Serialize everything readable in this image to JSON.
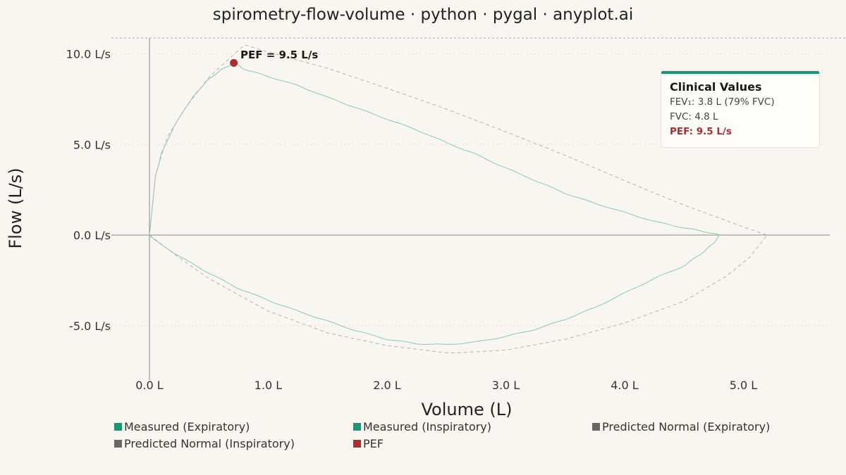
{
  "chart_data": {
    "type": "line",
    "title": "spirometry-flow-volume · python · pygal · anyplot.ai",
    "xlabel": "Volume (L)",
    "ylabel": "Flow (L/s)",
    "xlim": [
      -0.3,
      5.75
    ],
    "ylim": [
      -7.8,
      10.9
    ],
    "x_ticks": [
      0,
      1,
      2,
      3,
      4,
      5
    ],
    "x_tick_labels": [
      "0.0 L",
      "1.0 L",
      "2.0 L",
      "3.0 L",
      "4.0 L",
      "5.0 L"
    ],
    "y_ticks": [
      10,
      5,
      0,
      -5
    ],
    "y_tick_labels": [
      "10.0 L/s",
      "5.0 L/s",
      "0.0 L/s",
      "-5.0 L/s"
    ],
    "grid": "horizontal-dotted",
    "legend_position": "bottom",
    "series": [
      {
        "name": "Measured (Expiratory)",
        "color": "#159a77",
        "style": "solid",
        "points": [
          [
            0,
            0
          ],
          [
            0.05,
            3.2
          ],
          [
            0.1,
            4.5
          ],
          [
            0.2,
            5.9
          ],
          [
            0.3,
            7.0
          ],
          [
            0.4,
            7.9
          ],
          [
            0.5,
            8.6
          ],
          [
            0.6,
            9.1
          ],
          [
            0.71,
            9.5
          ],
          [
            0.8,
            9.15
          ],
          [
            1.0,
            8.75
          ],
          [
            1.25,
            8.25
          ],
          [
            1.5,
            7.6
          ],
          [
            1.75,
            7.0
          ],
          [
            2.0,
            6.4
          ],
          [
            2.25,
            5.8
          ],
          [
            2.5,
            5.1
          ],
          [
            2.75,
            4.45
          ],
          [
            3.0,
            3.7
          ],
          [
            3.25,
            3.0
          ],
          [
            3.5,
            2.3
          ],
          [
            3.75,
            1.75
          ],
          [
            4.0,
            1.25
          ],
          [
            4.25,
            0.75
          ],
          [
            4.5,
            0.4
          ],
          [
            4.7,
            0.15
          ],
          [
            4.8,
            0.0
          ]
        ]
      },
      {
        "name": "Measured (Inspiratory)",
        "color": "#159a77",
        "style": "solid",
        "points": [
          [
            0,
            0
          ],
          [
            0.1,
            -0.55
          ],
          [
            0.3,
            -1.35
          ],
          [
            0.5,
            -2.1
          ],
          [
            0.75,
            -2.95
          ],
          [
            1.0,
            -3.6
          ],
          [
            1.25,
            -4.2
          ],
          [
            1.5,
            -4.75
          ],
          [
            1.75,
            -5.3
          ],
          [
            2.0,
            -5.75
          ],
          [
            2.25,
            -6.0
          ],
          [
            2.5,
            -6.05
          ],
          [
            2.75,
            -5.9
          ],
          [
            3.0,
            -5.6
          ],
          [
            3.25,
            -5.2
          ],
          [
            3.5,
            -4.65
          ],
          [
            3.75,
            -4.0
          ],
          [
            4.0,
            -3.2
          ],
          [
            4.25,
            -2.4
          ],
          [
            4.5,
            -1.7
          ],
          [
            4.65,
            -1.0
          ],
          [
            4.75,
            -0.45
          ],
          [
            4.8,
            0.0
          ]
        ]
      },
      {
        "name": "Predicted Normal (Expiratory)",
        "color": "#6b6661",
        "style": "dashed",
        "points": [
          [
            0,
            0
          ],
          [
            0.05,
            3.3
          ],
          [
            0.15,
            5.4
          ],
          [
            0.3,
            7.0
          ],
          [
            0.5,
            8.7
          ],
          [
            0.7,
            9.9
          ],
          [
            0.8,
            10.5
          ],
          [
            1.0,
            10.1
          ],
          [
            1.5,
            9.2
          ],
          [
            2.0,
            8.1
          ],
          [
            2.5,
            6.95
          ],
          [
            3.0,
            5.7
          ],
          [
            3.5,
            4.4
          ],
          [
            4.0,
            3.0
          ],
          [
            4.5,
            1.65
          ],
          [
            5.0,
            0.45
          ],
          [
            5.2,
            0.0
          ]
        ]
      },
      {
        "name": "Predicted Normal (Inspiratory)",
        "color": "#6b6661",
        "style": "dashed",
        "points": [
          [
            0,
            0
          ],
          [
            0.25,
            -1.25
          ],
          [
            0.5,
            -2.4
          ],
          [
            0.75,
            -3.3
          ],
          [
            1.0,
            -4.2
          ],
          [
            1.5,
            -5.4
          ],
          [
            2.0,
            -6.1
          ],
          [
            2.5,
            -6.5
          ],
          [
            2.6,
            -6.5
          ],
          [
            3.0,
            -6.35
          ],
          [
            3.5,
            -5.75
          ],
          [
            4.0,
            -4.85
          ],
          [
            4.5,
            -3.65
          ],
          [
            4.85,
            -2.3
          ],
          [
            5.05,
            -1.25
          ],
          [
            5.2,
            0.0
          ]
        ]
      },
      {
        "name": "PEF",
        "color": "#b02a30",
        "style": "marker",
        "points": [
          [
            0.71,
            9.5
          ]
        ]
      }
    ],
    "annotations": [
      {
        "text": "PEF = 9.5 L/s",
        "x": 0.71,
        "y": 9.5
      }
    ]
  },
  "clinical_card": {
    "title": "Clinical Values",
    "fev1": "FEV₁: 3.8 L (79% FVC)",
    "fvc": "FVC: 4.8 L",
    "pef": "PEF: 9.5 L/s",
    "accent_color": "#159a77",
    "pef_color": "#b02a30"
  }
}
